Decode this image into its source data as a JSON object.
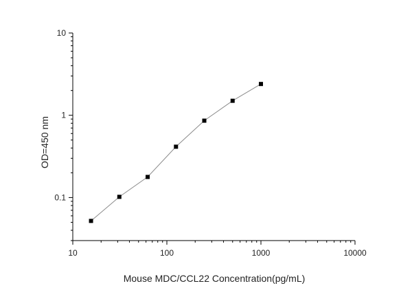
{
  "chart_data": {
    "type": "scatter",
    "title": "",
    "xlabel": "Mouse MDC/CCL22 Concentration(pg/mL)",
    "ylabel": "OD=450 nm",
    "x_scale": "log",
    "y_scale": "log",
    "xlim": [
      10,
      10000
    ],
    "ylim": [
      0.03,
      10
    ],
    "x_ticks": [
      10,
      100,
      1000,
      10000
    ],
    "x_tick_labels": [
      "10",
      "100",
      "1000",
      "10000"
    ],
    "y_ticks": [
      0.1,
      1,
      10
    ],
    "y_tick_labels": [
      "0.1",
      "1",
      "10"
    ],
    "grid": false,
    "legend": "none",
    "series": [
      {
        "x": [
          15.625,
          31.25,
          62.5,
          125,
          250,
          500,
          1000
        ],
        "y": [
          0.052,
          0.102,
          0.178,
          0.415,
          0.86,
          1.5,
          2.4
        ],
        "marker": "square",
        "line": true,
        "marker_color": "#000000",
        "line_color": "#8a8a8a"
      }
    ]
  }
}
